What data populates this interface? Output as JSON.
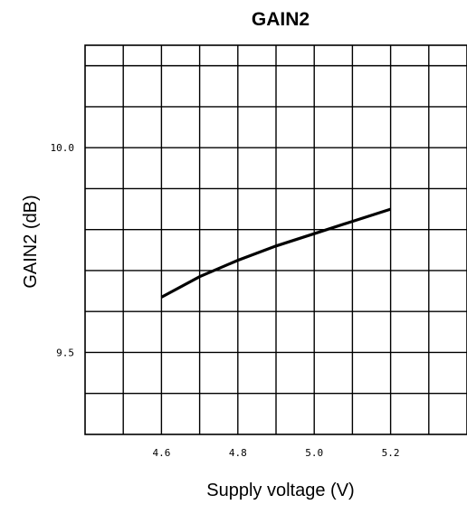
{
  "chart_data": {
    "type": "line",
    "title": "GAIN2",
    "xlabel": "Supply voltage (V)",
    "ylabel": "GAIN2 (dB)",
    "xlim": [
      4.4,
      5.4
    ],
    "ylim": [
      9.3,
      10.25
    ],
    "xticks": [
      {
        "value": 4.6,
        "label": "4.6"
      },
      {
        "value": 4.8,
        "label": "4.8"
      },
      {
        "value": 5.0,
        "label": "5.0"
      },
      {
        "value": 5.2,
        "label": "5.2"
      }
    ],
    "yticks": [
      {
        "value": 9.5,
        "label": "9.5"
      },
      {
        "value": 10.0,
        "label": "10.0"
      }
    ],
    "grid": true,
    "x_grid_step": 0.1,
    "y_grid_step": 0.1,
    "series": [
      {
        "x": [
          4.6,
          4.7,
          4.8,
          4.9,
          5.0,
          5.1,
          5.2
        ],
        "values": [
          9.635,
          9.685,
          9.725,
          9.76,
          9.79,
          9.82,
          9.85
        ]
      }
    ]
  }
}
